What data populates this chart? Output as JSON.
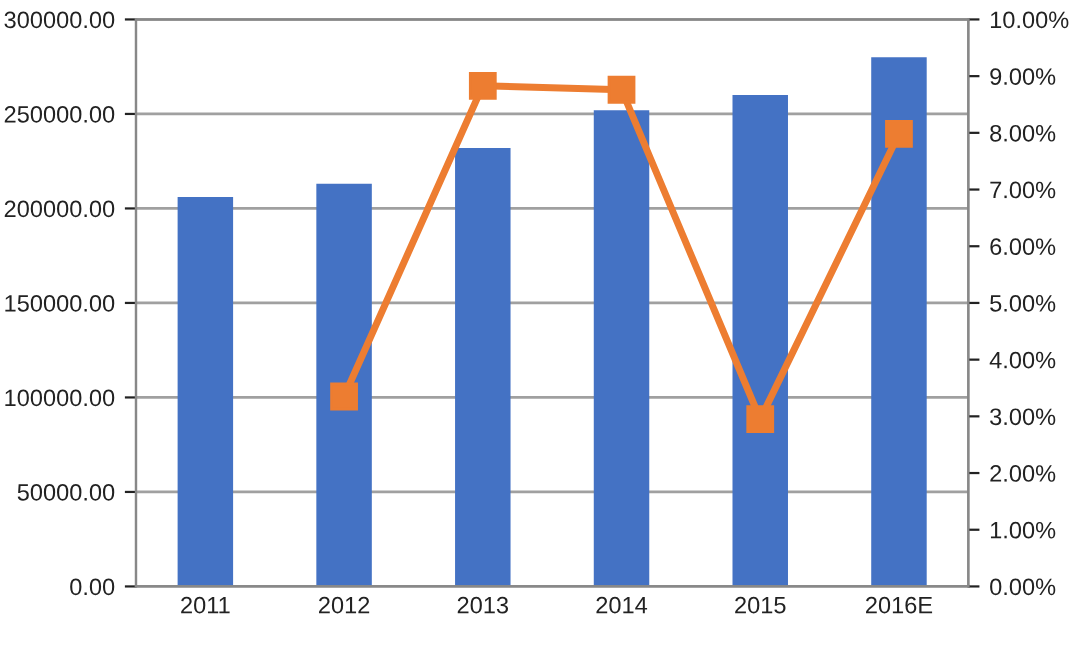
{
  "chart_data": {
    "type": "bar",
    "categories": [
      "2011",
      "2012",
      "2013",
      "2014",
      "2015",
      "2016E"
    ],
    "series": [
      {
        "color": "#4472c4",
        "values": [
          206000,
          213000,
          232000,
          252000,
          260000,
          280000
        ]
      },
      {
        "type": "line",
        "axis": "y2",
        "color": "#ed7d31",
        "marker": "square",
        "values": [
          null,
          3.35,
          8.83,
          8.76,
          2.95,
          7.98
        ]
      }
    ],
    "ylim": [
      0,
      300000
    ],
    "yticks": [
      {
        "value": 0,
        "label": "0.00"
      },
      {
        "value": 50000,
        "label": "50000.00"
      },
      {
        "value": 100000,
        "label": "100000.00"
      },
      {
        "value": 150000,
        "label": "150000.00"
      },
      {
        "value": 200000,
        "label": "200000.00"
      },
      {
        "value": 250000,
        "label": "250000.00"
      },
      {
        "value": 300000,
        "label": "300000.00"
      }
    ],
    "y2lim": [
      0,
      10
    ],
    "y2ticks": [
      {
        "value": 0,
        "label": "0.00%"
      },
      {
        "value": 1,
        "label": "1.00%"
      },
      {
        "value": 2,
        "label": "2.00%"
      },
      {
        "value": 3,
        "label": "3.00%"
      },
      {
        "value": 4,
        "label": "4.00%"
      },
      {
        "value": 5,
        "label": "5.00%"
      },
      {
        "value": 6,
        "label": "6.00%"
      },
      {
        "value": 7,
        "label": "7.00%"
      },
      {
        "value": 8,
        "label": "8.00%"
      },
      {
        "value": 9,
        "label": "9.00%"
      },
      {
        "value": 10,
        "label": "10.00%"
      }
    ],
    "grid": "y"
  }
}
